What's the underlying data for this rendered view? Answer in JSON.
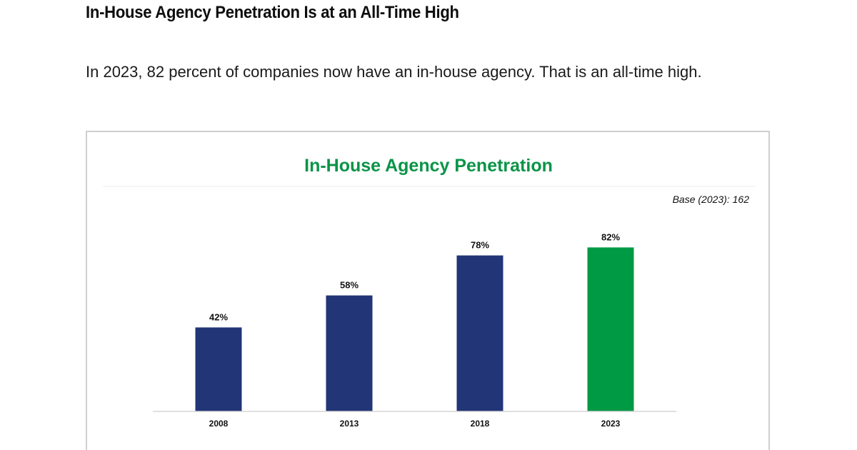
{
  "page": {
    "title": "In-House Agency Penetration Is at an All-Time High",
    "intro": "In 2023, 82 percent of companies now have an in-house agency. That is an all-time high."
  },
  "colors": {
    "title_green": "#0a9447",
    "bar_navy": "#213577",
    "bar_green": "#009944",
    "panel_border": "#cfcfcf",
    "axis": "#d6d6d6"
  },
  "chart_data": {
    "type": "bar",
    "title": "In-House Agency Penetration",
    "base_note": "Base (2023): 162",
    "categories": [
      "2008",
      "2013",
      "2018",
      "2023"
    ],
    "values": [
      42,
      58,
      78,
      82
    ],
    "data_labels": [
      "42%",
      "58%",
      "78%",
      "82%"
    ],
    "highlight_index": 3,
    "xlabel": "",
    "ylabel": "",
    "ylim": [
      0,
      100
    ],
    "grid": false,
    "legend": "none"
  }
}
